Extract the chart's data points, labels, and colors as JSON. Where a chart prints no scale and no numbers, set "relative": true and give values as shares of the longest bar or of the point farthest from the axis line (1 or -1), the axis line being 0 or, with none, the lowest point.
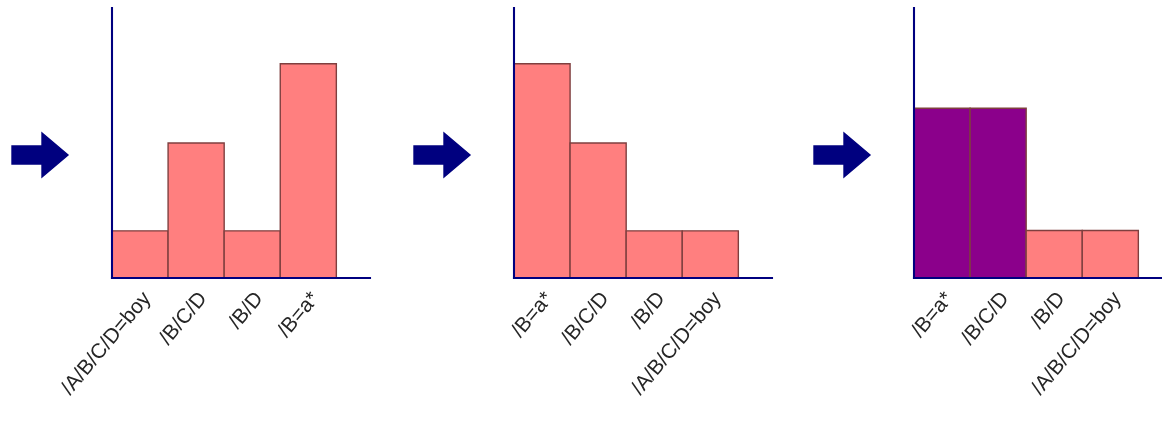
{
  "chart_data": [
    {
      "type": "bar",
      "relative": true,
      "categories": [
        "/A/B/C/D=boy",
        "/B/C/D",
        "/B/D",
        "/B=a*"
      ],
      "values": [
        0.22,
        0.63,
        0.22,
        1
      ],
      "color": "#ff7f7f",
      "grid": false,
      "legend": false
    },
    {
      "type": "bar",
      "relative": true,
      "categories": [
        "/B=a*",
        "/B/C/D",
        "/B/D",
        "/A/B/C/D=boy"
      ],
      "values": [
        1,
        0.63,
        0.22,
        0.22
      ],
      "color": "#ff7f7f",
      "grid": false,
      "legend": false
    },
    {
      "type": "bar",
      "relative": true,
      "categories": [
        "/B=a*",
        "/B/C/D",
        "/B/D",
        "/A/B/C/D=boy"
      ],
      "values": [
        1,
        1,
        0.28,
        0.28
      ],
      "colors": [
        "#8b008b",
        "#8b008b",
        "#ff7f7f",
        "#ff7f7f"
      ],
      "grid": false,
      "legend": false
    }
  ]
}
